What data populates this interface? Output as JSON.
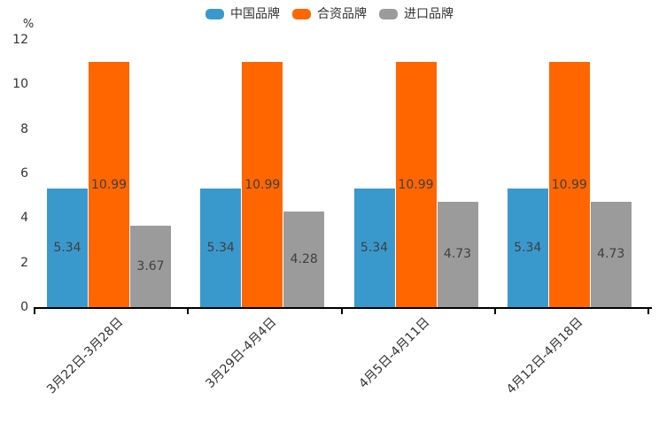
{
  "chart_data": {
    "type": "bar",
    "title": "",
    "unit_label": "%",
    "categories": [
      "3月22日-3月28日",
      "3月29日-4月4日",
      "4月5日-4月11日",
      "4月12日-4月18日"
    ],
    "series": [
      {
        "name": "中国品牌",
        "color": "#3A99CC",
        "values": [
          5.34,
          5.34,
          5.34,
          5.34
        ]
      },
      {
        "name": "合资品牌",
        "color": "#FF6600",
        "values": [
          10.99,
          10.99,
          10.99,
          10.99
        ]
      },
      {
        "name": "进口品牌",
        "color": "#9B9B9B",
        "values": [
          3.67,
          4.28,
          4.73,
          4.73
        ]
      }
    ],
    "ylim": [
      0,
      12
    ],
    "yticks": [
      0,
      2,
      4,
      6,
      8,
      10,
      12
    ],
    "grid": false,
    "legend_position": "top",
    "value_labels": true,
    "value_label_position": "inside-center",
    "x_label_rotation": 45
  },
  "colors": {
    "axis_line": "#000000",
    "axis_text": "#333333",
    "value_label_text": "#3f3f3f",
    "background": "#ffffff"
  }
}
